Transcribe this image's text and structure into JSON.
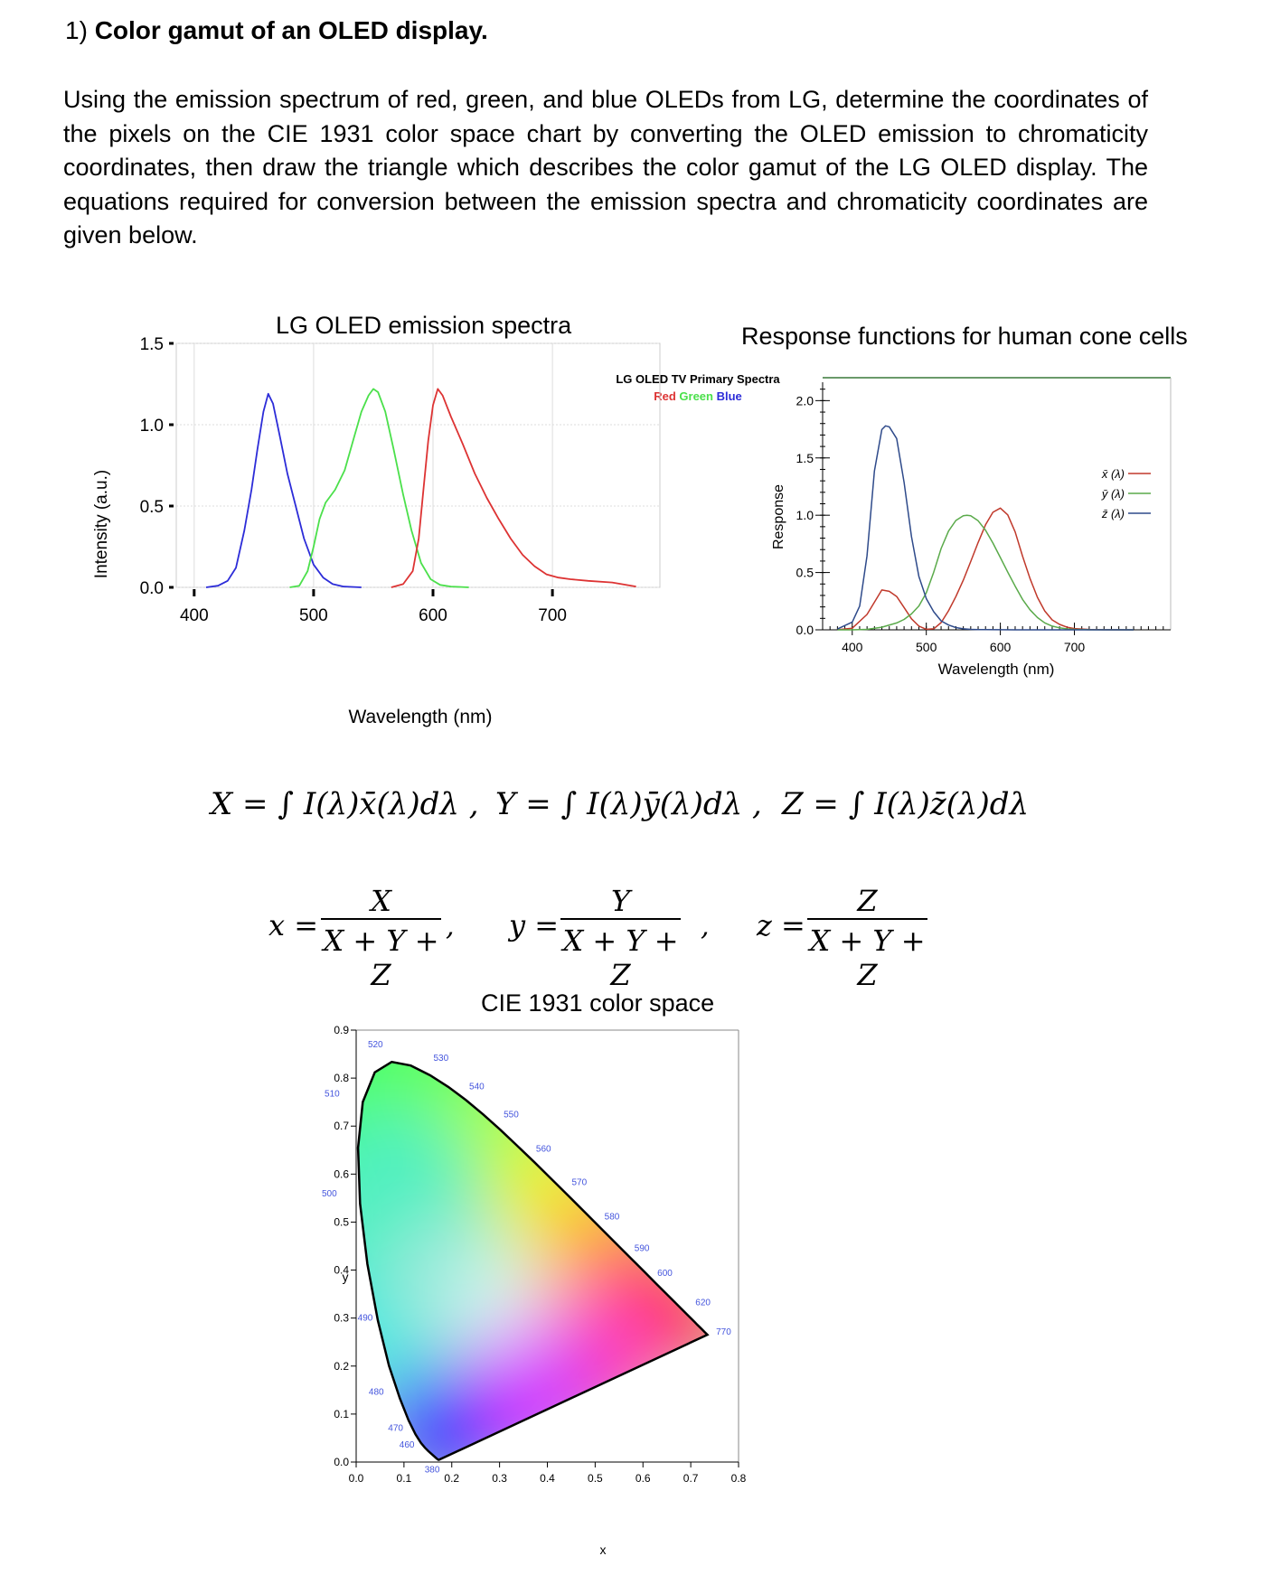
{
  "heading": {
    "number": "1)",
    "title": "Color gamut of an OLED display."
  },
  "paragraph": "Using the emission spectrum of red, green, and blue OLEDs from LG, determine the coordinates of the pixels on the CIE 1931 color space chart by converting the OLED emission to chromaticity coordinates, then draw the triangle which describes the color gamut of the LG OLED display. The equations required for conversion between the emission spectra and chromaticity coordinates are given below.",
  "equations": {
    "X": "X = ∫ I(λ)x̄(λ)dλ ,",
    "Y": "Y = ∫ I(λ)ȳ(λ)dλ ,",
    "Z": "Z = ∫ I(λ)z̄(λ)dλ",
    "x_lhs": "x =",
    "x_num": "X",
    "y_lhs": "y =",
    "y_num": "Y",
    "z_lhs": "z =",
    "z_num": "Z",
    "den": "X + Y + Z",
    "comma": ","
  },
  "chart_data": [
    {
      "type": "line",
      "title": "LG OLED emission spectra",
      "inner_title": "LG OLED TV Primary Spectra",
      "legend": [
        "Red",
        "Green",
        "Blue"
      ],
      "xlabel": "Wavelength (nm)",
      "ylabel": "Intensity (a.u.)",
      "xlim": [
        385,
        790
      ],
      "ylim": [
        0,
        1.5
      ],
      "x_ticks": [
        "400",
        "500",
        "600",
        "700"
      ],
      "y_ticks": [
        "0.0",
        "0.5",
        "1.0",
        "1.5"
      ],
      "series": [
        {
          "name": "Blue",
          "color": "#2c2cd8",
          "points": [
            [
              410,
              0
            ],
            [
              420,
              0.01
            ],
            [
              428,
              0.04
            ],
            [
              435,
              0.12
            ],
            [
              442,
              0.35
            ],
            [
              448,
              0.6
            ],
            [
              453,
              0.85
            ],
            [
              458,
              1.08
            ],
            [
              462,
              1.19
            ],
            [
              466,
              1.13
            ],
            [
              472,
              0.92
            ],
            [
              478,
              0.7
            ],
            [
              485,
              0.5
            ],
            [
              492,
              0.3
            ],
            [
              500,
              0.14
            ],
            [
              508,
              0.06
            ],
            [
              516,
              0.02
            ],
            [
              525,
              0.005
            ],
            [
              540,
              0
            ]
          ]
        },
        {
          "name": "Green",
          "color": "#4be04b",
          "points": [
            [
              480,
              0
            ],
            [
              488,
              0.01
            ],
            [
              495,
              0.1
            ],
            [
              500,
              0.25
            ],
            [
              505,
              0.42
            ],
            [
              510,
              0.52
            ],
            [
              518,
              0.6
            ],
            [
              526,
              0.72
            ],
            [
              533,
              0.9
            ],
            [
              540,
              1.08
            ],
            [
              546,
              1.18
            ],
            [
              550,
              1.22
            ],
            [
              554,
              1.2
            ],
            [
              560,
              1.08
            ],
            [
              567,
              0.85
            ],
            [
              575,
              0.57
            ],
            [
              582,
              0.35
            ],
            [
              590,
              0.15
            ],
            [
              598,
              0.05
            ],
            [
              606,
              0.015
            ],
            [
              615,
              0.005
            ],
            [
              630,
              0
            ]
          ]
        },
        {
          "name": "Red",
          "color": "#dd3333",
          "points": [
            [
              565,
              0
            ],
            [
              575,
              0.02
            ],
            [
              583,
              0.1
            ],
            [
              588,
              0.3
            ],
            [
              592,
              0.6
            ],
            [
              596,
              0.9
            ],
            [
              600,
              1.12
            ],
            [
              604,
              1.22
            ],
            [
              608,
              1.18
            ],
            [
              615,
              1.05
            ],
            [
              625,
              0.88
            ],
            [
              635,
              0.7
            ],
            [
              645,
              0.55
            ],
            [
              655,
              0.42
            ],
            [
              665,
              0.3
            ],
            [
              675,
              0.2
            ],
            [
              685,
              0.13
            ],
            [
              695,
              0.08
            ],
            [
              705,
              0.06
            ],
            [
              715,
              0.05
            ],
            [
              730,
              0.04
            ],
            [
              750,
              0.03
            ],
            [
              770,
              0.005
            ]
          ]
        }
      ]
    },
    {
      "type": "line",
      "title": "Response functions for human cone cells",
      "xlabel": "Wavelength (nm)",
      "ylabel": "Response",
      "xlim": [
        360,
        830
      ],
      "ylim": [
        0,
        2.2
      ],
      "x_ticks": [
        "400",
        "500",
        "600",
        "700"
      ],
      "y_ticks": [
        "0.0",
        "0.5",
        "1.0",
        "1.5",
        "2.0"
      ],
      "series": [
        {
          "name": "x̄ (λ)",
          "color": "#c0392b",
          "points": [
            [
              380,
              0.001
            ],
            [
              400,
              0.014
            ],
            [
              420,
              0.134
            ],
            [
              440,
              0.348
            ],
            [
              450,
              0.336
            ],
            [
              460,
              0.291
            ],
            [
              470,
              0.195
            ],
            [
              480,
              0.096
            ],
            [
              490,
              0.032
            ],
            [
              500,
              0.005
            ],
            [
              510,
              0.009
            ],
            [
              520,
              0.063
            ],
            [
              530,
              0.166
            ],
            [
              540,
              0.29
            ],
            [
              550,
              0.433
            ],
            [
              560,
              0.595
            ],
            [
              570,
              0.762
            ],
            [
              580,
              0.916
            ],
            [
              590,
              1.026
            ],
            [
              600,
              1.062
            ],
            [
              610,
              1.003
            ],
            [
              620,
              0.854
            ],
            [
              630,
              0.642
            ],
            [
              640,
              0.448
            ],
            [
              650,
              0.284
            ],
            [
              660,
              0.165
            ],
            [
              670,
              0.087
            ],
            [
              680,
              0.047
            ],
            [
              690,
              0.023
            ],
            [
              700,
              0.011
            ],
            [
              720,
              0.003
            ],
            [
              740,
              0.001
            ],
            [
              780,
              0
            ]
          ]
        },
        {
          "name": "ȳ (λ)",
          "color": "#5aaa4a",
          "points": [
            [
              380,
              0
            ],
            [
              400,
              0
            ],
            [
              420,
              0.004
            ],
            [
              440,
              0.023
            ],
            [
              460,
              0.06
            ],
            [
              470,
              0.091
            ],
            [
              480,
              0.139
            ],
            [
              490,
              0.208
            ],
            [
              500,
              0.323
            ],
            [
              510,
              0.503
            ],
            [
              520,
              0.71
            ],
            [
              530,
              0.862
            ],
            [
              540,
              0.954
            ],
            [
              550,
              0.995
            ],
            [
              555,
              1.0
            ],
            [
              560,
              0.995
            ],
            [
              570,
              0.952
            ],
            [
              580,
              0.87
            ],
            [
              590,
              0.757
            ],
            [
              600,
              0.631
            ],
            [
              610,
              0.503
            ],
            [
              620,
              0.381
            ],
            [
              630,
              0.265
            ],
            [
              640,
              0.175
            ],
            [
              650,
              0.107
            ],
            [
              660,
              0.061
            ],
            [
              670,
              0.032
            ],
            [
              680,
              0.017
            ],
            [
              690,
              0.008
            ],
            [
              700,
              0.004
            ],
            [
              720,
              0.001
            ],
            [
              780,
              0
            ]
          ]
        },
        {
          "name": "z̄ (λ)",
          "color": "#2e4a8a",
          "points": [
            [
              380,
              0.007
            ],
            [
              400,
              0.068
            ],
            [
              410,
              0.207
            ],
            [
              420,
              0.646
            ],
            [
              430,
              1.386
            ],
            [
              440,
              1.747
            ],
            [
              445,
              1.78
            ],
            [
              450,
              1.772
            ],
            [
              460,
              1.669
            ],
            [
              470,
              1.288
            ],
            [
              480,
              0.813
            ],
            [
              490,
              0.465
            ],
            [
              500,
              0.272
            ],
            [
              510,
              0.158
            ],
            [
              520,
              0.078
            ],
            [
              530,
              0.042
            ],
            [
              540,
              0.02
            ],
            [
              550,
              0.009
            ],
            [
              560,
              0.004
            ],
            [
              570,
              0.002
            ],
            [
              580,
              0.002
            ],
            [
              600,
              0.001
            ],
            [
              620,
              0
            ],
            [
              780,
              0
            ]
          ]
        }
      ]
    },
    {
      "type": "scatter",
      "title": "CIE 1931 color space",
      "xlabel": "x",
      "ylabel": "y",
      "xlim": [
        0,
        0.8
      ],
      "ylim": [
        0,
        0.9
      ],
      "x_ticks": [
        "0.0",
        "0.1",
        "0.2",
        "0.3",
        "0.4",
        "0.5",
        "0.6",
        "0.7",
        "0.8"
      ],
      "y_ticks": [
        "0.0",
        "0.1",
        "0.2",
        "0.3",
        "0.4",
        "0.5",
        "0.6",
        "0.7",
        "0.8",
        "0.9"
      ],
      "locus": [
        [
          0.1741,
          0.005
        ],
        [
          0.1738,
          0.0049
        ],
        [
          0.1736,
          0.0049
        ],
        [
          0.1733,
          0.0048
        ],
        [
          0.173,
          0.0048
        ],
        [
          0.1726,
          0.0048
        ],
        [
          0.1721,
          0.0048
        ],
        [
          0.1714,
          0.0051
        ],
        [
          0.1703,
          0.0058
        ],
        [
          0.1689,
          0.0069
        ],
        [
          0.1669,
          0.0086
        ],
        [
          0.1644,
          0.0109
        ],
        [
          0.1611,
          0.0138
        ],
        [
          0.1566,
          0.0177
        ],
        [
          0.151,
          0.0227
        ],
        [
          0.144,
          0.0297
        ],
        [
          0.1355,
          0.0399
        ],
        [
          0.1241,
          0.0578
        ],
        [
          0.1096,
          0.0868
        ],
        [
          0.0913,
          0.1327
        ],
        [
          0.0687,
          0.2007
        ],
        [
          0.0454,
          0.295
        ],
        [
          0.0235,
          0.4127
        ],
        [
          0.0082,
          0.5384
        ],
        [
          0.0039,
          0.6548
        ],
        [
          0.0139,
          0.7502
        ],
        [
          0.0389,
          0.812
        ],
        [
          0.0743,
          0.8338
        ],
        [
          0.1142,
          0.8262
        ],
        [
          0.1547,
          0.8059
        ],
        [
          0.1929,
          0.7816
        ],
        [
          0.2296,
          0.7543
        ],
        [
          0.2658,
          0.7243
        ],
        [
          0.3016,
          0.6923
        ],
        [
          0.3373,
          0.6589
        ],
        [
          0.3731,
          0.6245
        ],
        [
          0.4087,
          0.5896
        ],
        [
          0.4441,
          0.5547
        ],
        [
          0.4788,
          0.5202
        ],
        [
          0.5125,
          0.4866
        ],
        [
          0.5448,
          0.4544
        ],
        [
          0.5752,
          0.4242
        ],
        [
          0.6029,
          0.3965
        ],
        [
          0.627,
          0.3725
        ],
        [
          0.6482,
          0.3514
        ],
        [
          0.6658,
          0.334
        ],
        [
          0.6801,
          0.3197
        ],
        [
          0.6915,
          0.3083
        ],
        [
          0.7006,
          0.2993
        ],
        [
          0.7079,
          0.292
        ],
        [
          0.714,
          0.2859
        ],
        [
          0.719,
          0.2809
        ],
        [
          0.723,
          0.277
        ],
        [
          0.726,
          0.274
        ],
        [
          0.7283,
          0.2717
        ],
        [
          0.73,
          0.27
        ],
        [
          0.7311,
          0.2689
        ],
        [
          0.732,
          0.268
        ],
        [
          0.7327,
          0.2673
        ],
        [
          0.7334,
          0.2666
        ],
        [
          0.734,
          0.266
        ],
        [
          0.7344,
          0.2656
        ],
        [
          0.7346,
          0.2654
        ],
        [
          0.7347,
          0.2653
        ]
      ],
      "wavelength_labels": [
        {
          "text": "380",
          "x": 0.1741,
          "y": 0.005
        },
        {
          "text": "460",
          "x": 0.144,
          "y": 0.0297
        },
        {
          "text": "470",
          "x": 0.1241,
          "y": 0.0578
        },
        {
          "text": "480",
          "x": 0.0913,
          "y": 0.1327
        },
        {
          "text": "490",
          "x": 0.0454,
          "y": 0.295
        },
        {
          "text": "500",
          "x": 0.0082,
          "y": 0.5384
        },
        {
          "text": "510",
          "x": 0.0139,
          "y": 0.7502
        },
        {
          "text": "520",
          "x": 0.0743,
          "y": 0.8338
        },
        {
          "text": "530",
          "x": 0.1547,
          "y": 0.8059
        },
        {
          "text": "540",
          "x": 0.2296,
          "y": 0.7543
        },
        {
          "text": "550",
          "x": 0.3016,
          "y": 0.6923
        },
        {
          "text": "560",
          "x": 0.3731,
          "y": 0.6245
        },
        {
          "text": "570",
          "x": 0.4441,
          "y": 0.5547
        },
        {
          "text": "580",
          "x": 0.5125,
          "y": 0.4866
        },
        {
          "text": "590",
          "x": 0.5752,
          "y": 0.4242
        },
        {
          "text": "600",
          "x": 0.627,
          "y": 0.3725
        },
        {
          "text": "620",
          "x": 0.6915,
          "y": 0.3083
        },
        {
          "text": "770",
          "x": 0.7347,
          "y": 0.2653
        }
      ]
    }
  ]
}
